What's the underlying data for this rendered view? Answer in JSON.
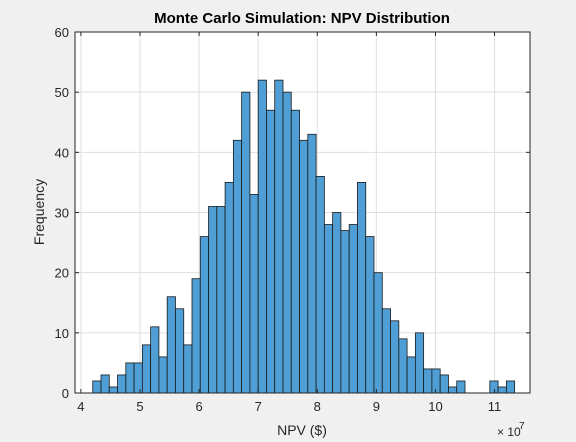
{
  "chart_data": {
    "type": "bar",
    "title": "Monte Carlo Simulation: NPV Distribution",
    "xlabel": "NPV ($)",
    "ylabel": "Frequency",
    "x_exponent_base": "× 10",
    "x_exponent_power": "7",
    "x_scale": 10000000,
    "xlim": [
      3.9,
      11.6
    ],
    "ylim": [
      0,
      60
    ],
    "bin_start": 4.2,
    "bin_width": 0.14,
    "xticks": [
      4,
      5,
      6,
      7,
      8,
      9,
      10,
      11
    ],
    "yticks": [
      0,
      10,
      20,
      30,
      40,
      50,
      60
    ],
    "grid": true,
    "colors": {
      "bar_fill": "#4f9fd6",
      "bar_edge": "#1a1a1a",
      "background": "#f0f0f0"
    },
    "values": [
      2,
      3,
      1,
      3,
      5,
      5,
      8,
      11,
      6,
      16,
      14,
      8,
      19,
      26,
      31,
      31,
      35,
      42,
      50,
      33,
      52,
      47,
      52,
      50,
      47,
      42,
      43,
      36,
      28,
      30,
      27,
      28,
      35,
      26,
      20,
      14,
      12,
      9,
      6,
      10,
      4,
      4,
      3,
      1,
      2,
      0,
      0,
      0,
      2,
      1,
      2
    ]
  }
}
